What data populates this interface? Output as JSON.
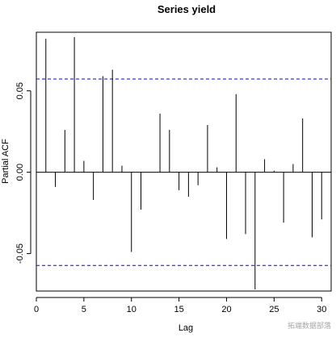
{
  "chart_data": {
    "type": "bar",
    "title": "Series  yield",
    "xlabel": "Lag",
    "ylabel": "Partial ACF",
    "xlim": [
      0,
      31
    ],
    "ylim": [
      -0.073,
      0.086
    ],
    "xticks": [
      0,
      5,
      10,
      15,
      20,
      25,
      30
    ],
    "yticks": [
      -0.05,
      0.0,
      0.05
    ],
    "ytick_labels": [
      "-0.05",
      "0.00",
      "0.05"
    ],
    "confidence_band": {
      "upper": 0.0573,
      "lower": -0.0573,
      "color": "#0000ff",
      "style": "dashed"
    },
    "grid": false,
    "x": [
      1,
      2,
      3,
      4,
      5,
      6,
      7,
      8,
      9,
      10,
      11,
      12,
      13,
      14,
      15,
      16,
      17,
      18,
      19,
      20,
      21,
      22,
      23,
      24,
      25,
      26,
      27,
      28,
      29,
      30
    ],
    "values": [
      0.082,
      -0.009,
      0.026,
      0.083,
      0.007,
      -0.017,
      0.059,
      0.063,
      0.004,
      -0.049,
      -0.023,
      0.0,
      0.036,
      0.026,
      -0.011,
      -0.015,
      -0.008,
      0.029,
      0.003,
      -0.041,
      0.048,
      -0.038,
      -0.072,
      0.008,
      0.001,
      -0.031,
      0.005,
      0.033,
      -0.04,
      -0.029
    ]
  },
  "watermark_text": "拓端数据部落"
}
